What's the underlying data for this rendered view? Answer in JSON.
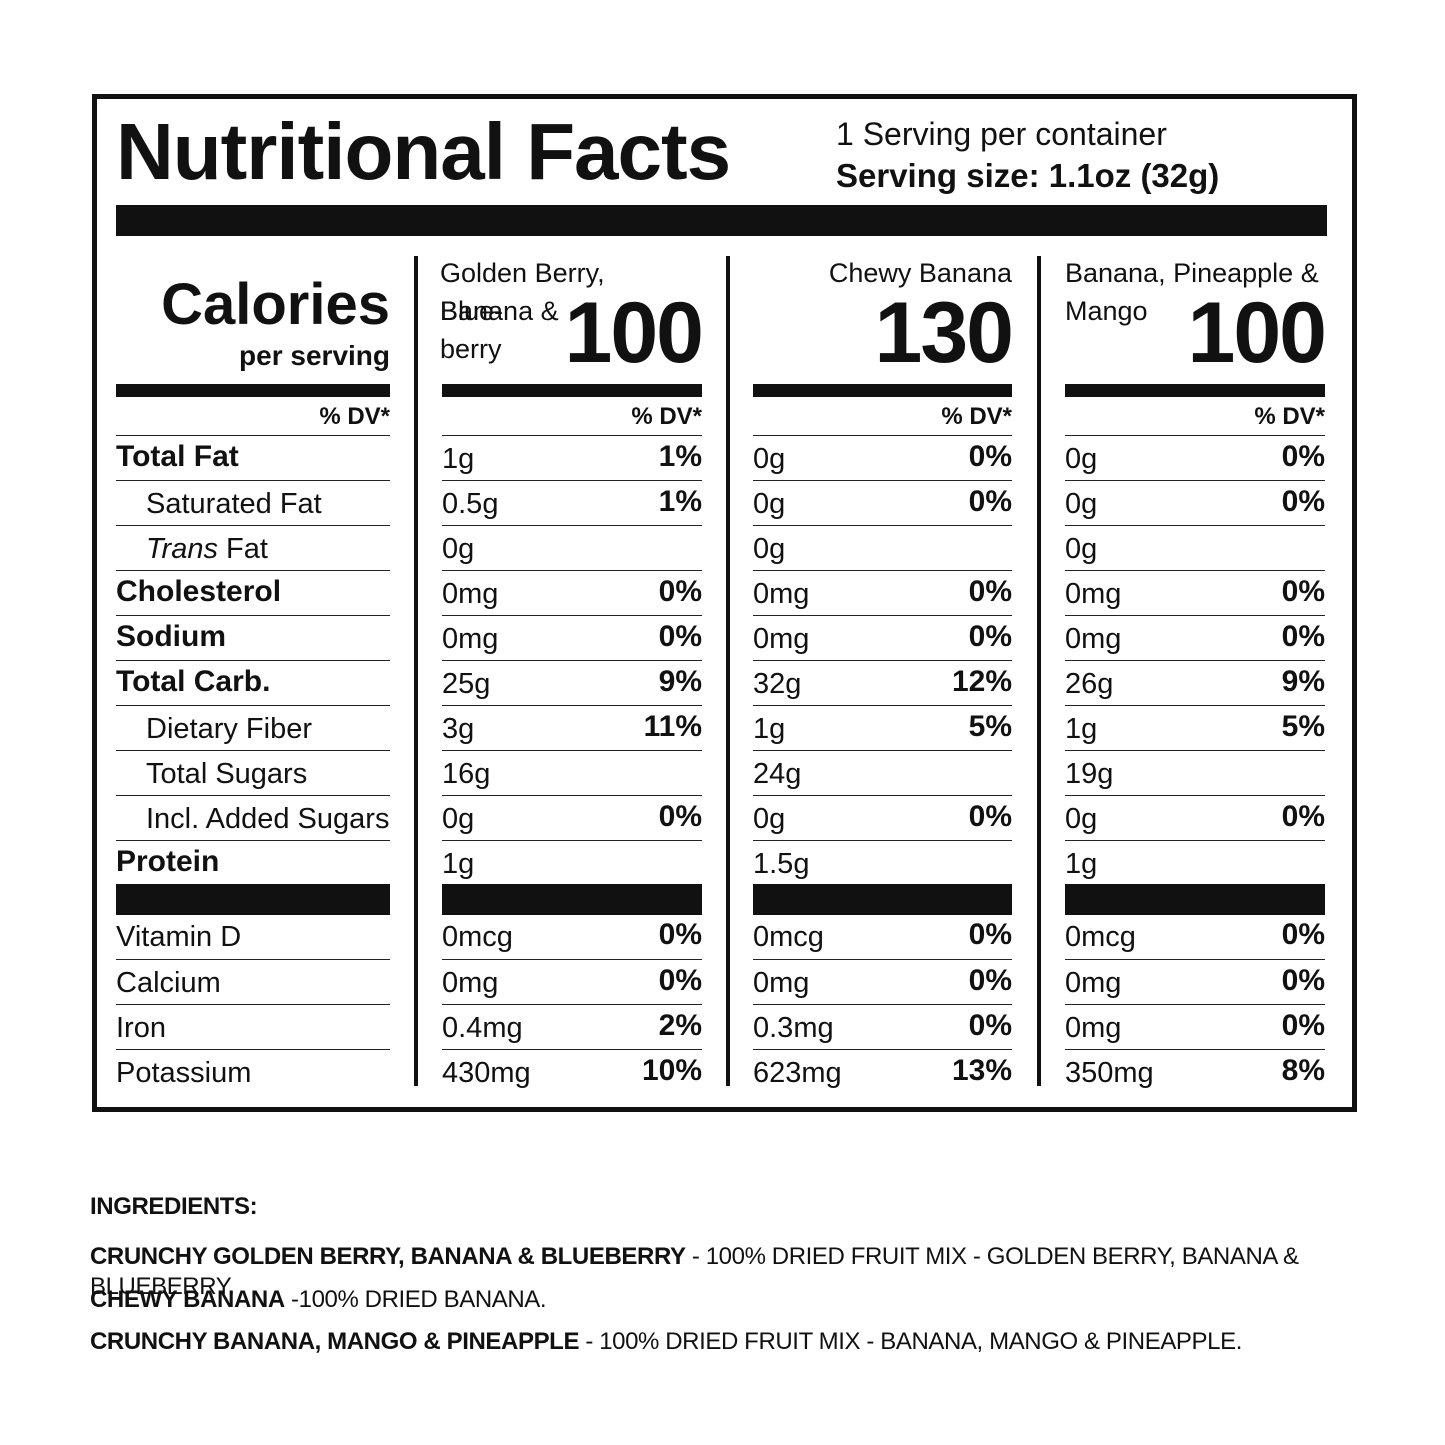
{
  "header": {
    "title": "Nutritional Facts",
    "servings_per_container": "1 Serving per container",
    "serving_size": "Serving size: 1.1oz (32g)"
  },
  "calories": {
    "label": "Calories",
    "sub": "per serving"
  },
  "dv_header": "% DV*",
  "nutrient_labels": [
    "Total Fat",
    "Saturated Fat",
    "Trans",
    "Cholesterol",
    "Sodium",
    "Total Carb.",
    "Dietary Fiber",
    "Total Sugars",
    "Incl. Added Sugars",
    "Protein"
  ],
  "trans_suffix": " Fat",
  "vitamin_labels": [
    "Vitamin D",
    "Calcium",
    "Iron",
    "Potassium"
  ],
  "products": [
    {
      "name_line1": "Golden Berry, Banana &",
      "name_line2": "Blue-",
      "name_line3": "berry",
      "calories": "100",
      "nutrients": [
        {
          "amt": "1g",
          "pct": "1%"
        },
        {
          "amt": "0.5g",
          "pct": "1%"
        },
        {
          "amt": "0g",
          "pct": ""
        },
        {
          "amt": "0mg",
          "pct": "0%"
        },
        {
          "amt": "0mg",
          "pct": "0%"
        },
        {
          "amt": "25g",
          "pct": "9%"
        },
        {
          "amt": "3g",
          "pct": "11%"
        },
        {
          "amt": "16g",
          "pct": ""
        },
        {
          "amt": "0g",
          "pct": "0%"
        },
        {
          "amt": "1g",
          "pct": ""
        }
      ],
      "vitamins": [
        {
          "amt": "0mcg",
          "pct": "0%"
        },
        {
          "amt": "0mg",
          "pct": "0%"
        },
        {
          "amt": "0.4mg",
          "pct": "2%"
        },
        {
          "amt": "430mg",
          "pct": "10%"
        }
      ]
    },
    {
      "name_line1": "Chewy Banana",
      "name_line2": "",
      "name_line3": "",
      "calories": "130",
      "nutrients": [
        {
          "amt": "0g",
          "pct": "0%"
        },
        {
          "amt": "0g",
          "pct": "0%"
        },
        {
          "amt": "0g",
          "pct": ""
        },
        {
          "amt": "0mg",
          "pct": "0%"
        },
        {
          "amt": "0mg",
          "pct": "0%"
        },
        {
          "amt": "32g",
          "pct": "12%"
        },
        {
          "amt": "1g",
          "pct": "5%"
        },
        {
          "amt": "24g",
          "pct": ""
        },
        {
          "amt": "0g",
          "pct": "0%"
        },
        {
          "amt": "1.5g",
          "pct": ""
        }
      ],
      "vitamins": [
        {
          "amt": "0mcg",
          "pct": "0%"
        },
        {
          "amt": "0mg",
          "pct": "0%"
        },
        {
          "amt": "0.3mg",
          "pct": "0%"
        },
        {
          "amt": "623mg",
          "pct": "13%"
        }
      ]
    },
    {
      "name_line1": "Banana, Pineapple &",
      "name_line2": "Mango",
      "name_line3": "",
      "calories": "100",
      "nutrients": [
        {
          "amt": "0g",
          "pct": "0%"
        },
        {
          "amt": "0g",
          "pct": "0%"
        },
        {
          "amt": "0g",
          "pct": ""
        },
        {
          "amt": "0mg",
          "pct": "0%"
        },
        {
          "amt": "0mg",
          "pct": "0%"
        },
        {
          "amt": "26g",
          "pct": "9%"
        },
        {
          "amt": "1g",
          "pct": "5%"
        },
        {
          "amt": "19g",
          "pct": ""
        },
        {
          "amt": "0g",
          "pct": "0%"
        },
        {
          "amt": "1g",
          "pct": ""
        }
      ],
      "vitamins": [
        {
          "amt": "0mcg",
          "pct": "0%"
        },
        {
          "amt": "0mg",
          "pct": "0%"
        },
        {
          "amt": "0mg",
          "pct": "0%"
        },
        {
          "amt": "350mg",
          "pct": "8%"
        }
      ]
    }
  ],
  "ingredients": {
    "heading": "INGREDIENTS:",
    "lines": [
      {
        "bold": "CRUNCHY GOLDEN BERRY, BANANA & BLUEBERRY",
        "text": " - 100% DRIED FRUIT MIX - GOLDEN BERRY, BANANA & BLUEBERRY."
      },
      {
        "bold": "CHEWY BANANA",
        "text": " -100% DRIED BANANA."
      },
      {
        "bold": "CRUNCHY BANANA, MANGO & PINEAPPLE",
        "text": " - 100% DRIED FRUIT MIX - BANANA, MANGO & PINEAPPLE."
      }
    ]
  }
}
